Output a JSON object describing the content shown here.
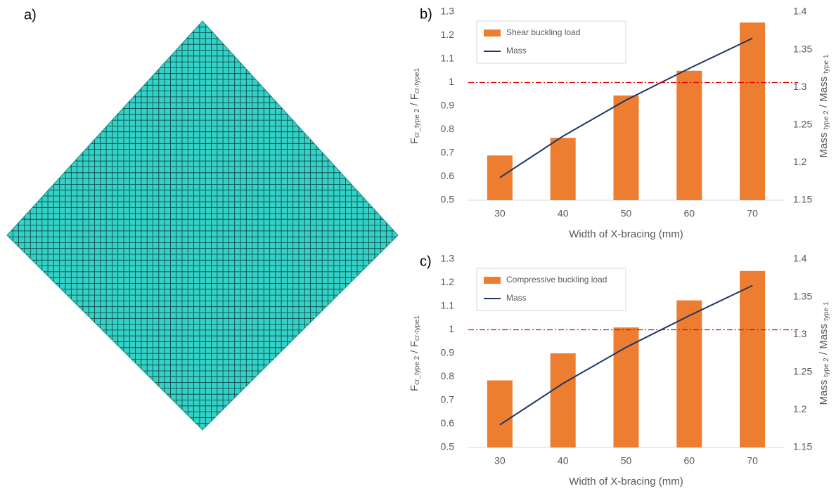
{
  "panel_a": {
    "label": "a)"
  },
  "chart_data": [
    {
      "type": "bar",
      "panel_label": "b)",
      "categories": [
        "30",
        "40",
        "50",
        "60",
        "70"
      ],
      "series": [
        {
          "name": "Shear buckling load",
          "type": "bar",
          "color": "#ed7d31",
          "values": [
            0.69,
            0.765,
            0.945,
            1.05,
            1.255
          ]
        },
        {
          "name": "Mass",
          "type": "line",
          "axis": "y2",
          "color": "#1f3864",
          "values": [
            1.18,
            1.235,
            1.283,
            1.325,
            1.365
          ]
        }
      ],
      "ylim": [
        0.5,
        1.3
      ],
      "yticks": [
        0.5,
        0.6,
        0.7,
        0.8,
        0.9,
        1,
        1.1,
        1.2,
        1.3
      ],
      "y2lim": [
        1.15,
        1.4
      ],
      "y2ticks": [
        1.15,
        1.2,
        1.25,
        1.3,
        1.35,
        1.4
      ],
      "reference_line": {
        "value": 1,
        "color": "#e00000"
      },
      "xlabel": "Width of X-bracing (mm)",
      "ylabel_parts": [
        {
          "text": "F"
        },
        {
          "text": "cr_type 2",
          "sub": true
        },
        {
          "text": " / F"
        },
        {
          "text": "cr-type1",
          "sub": true
        }
      ],
      "y2label_parts": [
        {
          "text": "Mass "
        },
        {
          "text": "type 2",
          "sub": true
        },
        {
          "text": " / Mass "
        },
        {
          "text": "type 1",
          "sub": true
        }
      ],
      "legend": "top-left"
    },
    {
      "type": "bar",
      "panel_label": "c)",
      "categories": [
        "30",
        "40",
        "50",
        "60",
        "70"
      ],
      "series": [
        {
          "name": "Compressive buckling load",
          "type": "bar",
          "color": "#ed7d31",
          "values": [
            0.785,
            0.9,
            1.01,
            1.125,
            1.25
          ]
        },
        {
          "name": "Mass",
          "type": "line",
          "axis": "y2",
          "color": "#1f3864",
          "values": [
            1.18,
            1.235,
            1.283,
            1.325,
            1.365
          ]
        }
      ],
      "ylim": [
        0.5,
        1.3
      ],
      "yticks": [
        0.5,
        0.6,
        0.7,
        0.8,
        0.9,
        1,
        1.1,
        1.2,
        1.3
      ],
      "y2lim": [
        1.15,
        1.4
      ],
      "y2ticks": [
        1.15,
        1.2,
        1.25,
        1.3,
        1.35,
        1.4
      ],
      "reference_line": {
        "value": 1,
        "color": "#e00000"
      },
      "xlabel": "Width of X-bracing (mm)",
      "ylabel_parts": [
        {
          "text": "F"
        },
        {
          "text": "cr_type 2",
          "sub": true
        },
        {
          "text": " / F"
        },
        {
          "text": "cr-type1",
          "sub": true
        }
      ],
      "y2label_parts": [
        {
          "text": "Mass "
        },
        {
          "text": "type 2",
          "sub": true
        },
        {
          "text": " / Mass "
        },
        {
          "text": "type 1",
          "sub": true
        }
      ],
      "legend": "top-left"
    }
  ]
}
